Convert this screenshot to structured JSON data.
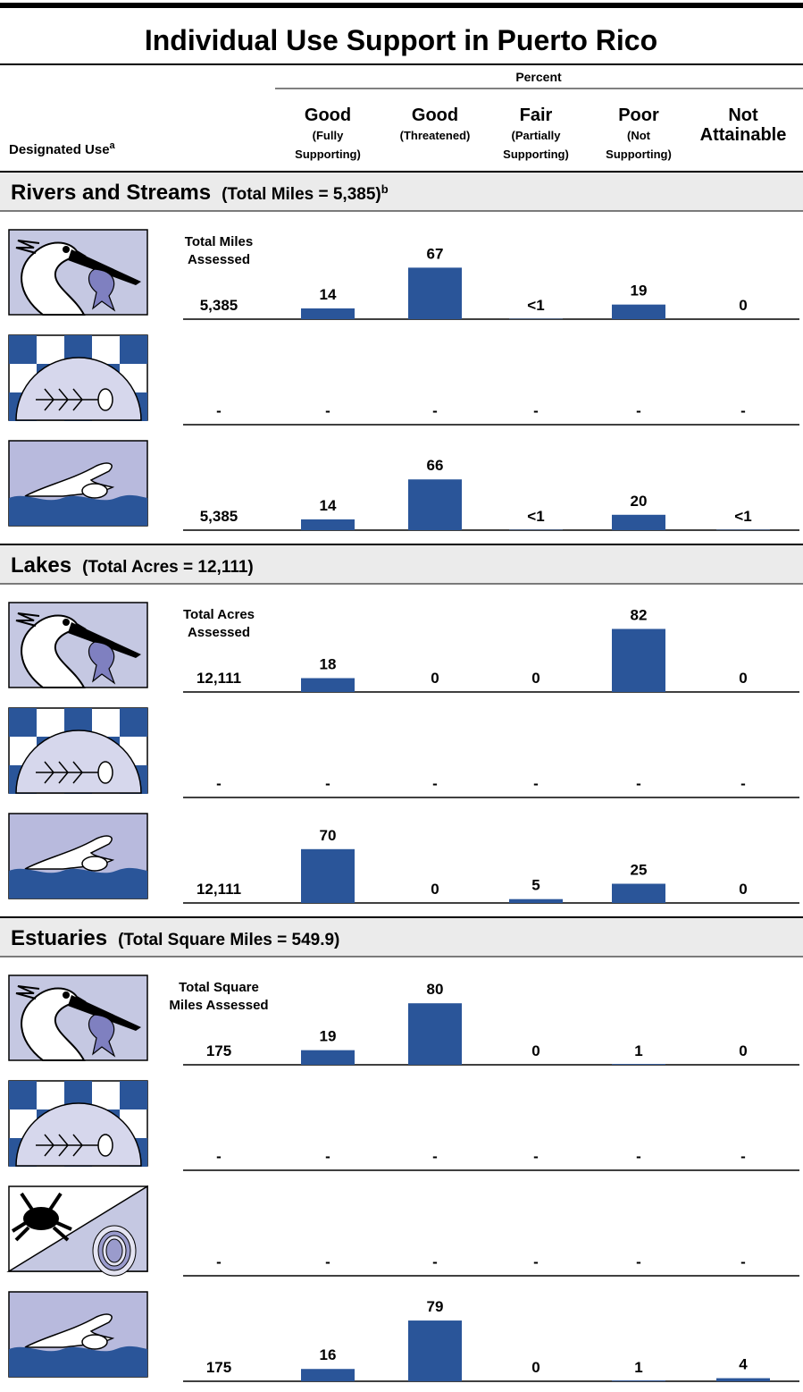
{
  "chart_data": {
    "type": "bar",
    "title": "Individual Use Support in Puerto Rico",
    "percent_label": "Percent",
    "designated_use": "Designated Use",
    "designated_use_footnote": "a",
    "color": "#2a5599",
    "columns": [
      {
        "title": [
          "Good"
        ],
        "sub": [
          "(Fully",
          "Supporting)"
        ]
      },
      {
        "title": [
          "Good"
        ],
        "sub": [
          "(Threatened)"
        ]
      },
      {
        "title": [
          "Fair"
        ],
        "sub": [
          "(Partially",
          "Supporting)"
        ]
      },
      {
        "title": [
          "Poor"
        ],
        "sub": [
          "(Not",
          "Supporting)"
        ]
      },
      {
        "title": [
          "Not",
          "Attainable"
        ],
        "sub": []
      }
    ],
    "sections": [
      {
        "name": "Rivers and Streams",
        "total": "(Total Miles = 5,385)",
        "footnote": "b",
        "assessed_label": [
          "Total Miles",
          "Assessed"
        ],
        "rows": [
          {
            "assessed": "5,385",
            "values": [
              14,
              67,
              0.5,
              19,
              0
            ],
            "value_labels": [
              "14",
              "67",
              "<1",
              "19",
              "0"
            ]
          },
          {
            "assessed": "-",
            "values": [
              null,
              null,
              null,
              null,
              null
            ],
            "value_labels": [
              "-",
              "-",
              "-",
              "-",
              "-"
            ]
          },
          {
            "assessed": "5,385",
            "values": [
              14,
              66,
              0.5,
              20,
              0.5
            ],
            "value_labels": [
              "14",
              "66",
              "<1",
              "20",
              "<1"
            ]
          }
        ]
      },
      {
        "name": "Lakes",
        "total": "(Total Acres = 12,111)",
        "assessed_label": [
          "Total Acres",
          "Assessed"
        ],
        "rows": [
          {
            "assessed": "12,111",
            "values": [
              18,
              0,
              0,
              82,
              0
            ],
            "value_labels": [
              "18",
              "0",
              "0",
              "82",
              "0"
            ]
          },
          {
            "assessed": "-",
            "values": [
              null,
              null,
              null,
              null,
              null
            ],
            "value_labels": [
              "-",
              "-",
              "-",
              "-",
              "-"
            ]
          },
          {
            "assessed": "12,111",
            "values": [
              70,
              0,
              5,
              25,
              0
            ],
            "value_labels": [
              "70",
              "0",
              "5",
              "25",
              "0"
            ]
          }
        ]
      },
      {
        "name": "Estuaries",
        "total": "(Total Square Miles = 549.9)",
        "assessed_label": [
          "Total Square",
          "Miles Assessed"
        ],
        "rows": [
          {
            "assessed": "175",
            "values": [
              19,
              80,
              0,
              1,
              0
            ],
            "value_labels": [
              "19",
              "80",
              "0",
              "1",
              "0"
            ]
          },
          {
            "assessed": "-",
            "values": [
              null,
              null,
              null,
              null,
              null
            ],
            "value_labels": [
              "-",
              "-",
              "-",
              "-",
              "-"
            ]
          },
          {
            "assessed": "-",
            "values": [
              null,
              null,
              null,
              null,
              null
            ],
            "value_labels": [
              "-",
              "-",
              "-",
              "-",
              "-"
            ]
          },
          {
            "assessed": "175",
            "values": [
              16,
              79,
              0,
              1,
              4
            ],
            "value_labels": [
              "16",
              "79",
              "0",
              "1",
              "4"
            ]
          }
        ]
      }
    ]
  }
}
